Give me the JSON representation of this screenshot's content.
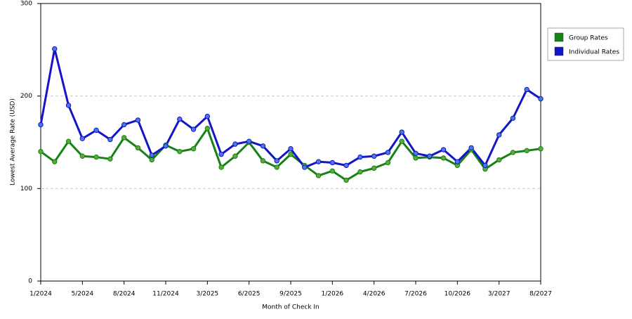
{
  "chart_data": {
    "type": "line",
    "x_label": "Month of Check In",
    "y_label": "Lowest Average Rate (USD)",
    "categories": [
      "1/2024",
      null,
      null,
      "5/2024",
      null,
      null,
      "8/2024",
      null,
      null,
      "11/2024",
      null,
      null,
      "3/2025",
      null,
      null,
      "6/2025",
      null,
      null,
      "9/2025",
      null,
      null,
      "1/2026",
      null,
      null,
      "4/2026",
      null,
      null,
      "7/2026",
      null,
      null,
      "10/2026",
      null,
      null,
      "3/2027",
      null,
      null,
      "8/2027"
    ],
    "series": [
      {
        "name": "Group Rates",
        "color": "#168216",
        "marker": "#5aaa3a",
        "values": [
          140,
          129,
          151,
          135,
          134,
          132,
          155,
          144,
          131,
          147,
          140,
          143,
          165,
          123,
          135,
          150,
          130,
          123,
          137,
          125,
          114,
          119,
          109,
          118,
          122,
          128,
          151,
          133,
          134,
          133,
          125,
          142,
          121,
          131,
          139,
          141,
          143
        ]
      },
      {
        "name": "Individual Rates",
        "color": "#1414c8",
        "marker": "#4a7ae0",
        "values": [
          169,
          251,
          190,
          154,
          163,
          153,
          169,
          174,
          136,
          146,
          175,
          164,
          178,
          137,
          148,
          151,
          146,
          130,
          143,
          123,
          129,
          128,
          125,
          134,
          135,
          139,
          161,
          138,
          135,
          142,
          129,
          144,
          125,
          158,
          176,
          207,
          197
        ]
      }
    ],
    "ylim": [
      0,
      300
    ],
    "yticks": [
      0,
      100,
      200,
      300
    ],
    "grid": true,
    "legend": "top-right"
  }
}
